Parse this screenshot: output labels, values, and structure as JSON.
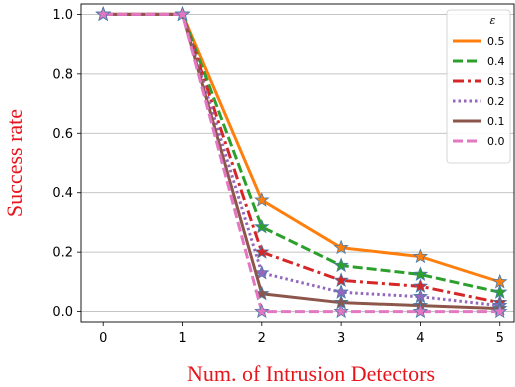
{
  "chart_data": {
    "type": "line",
    "xlabel": "Num. of Intrusion Detectors",
    "ylabel": "Success rate",
    "x": [
      0,
      1,
      2,
      3,
      4,
      5
    ],
    "xticks": [
      "0",
      "1",
      "2",
      "3",
      "4",
      "5"
    ],
    "yticks": [
      "0.0",
      "0.2",
      "0.4",
      "0.6",
      "0.8",
      "1.0"
    ],
    "xlim": [
      -0.28,
      5.18
    ],
    "ylim": [
      -0.035,
      1.035
    ],
    "grid": "horizontal",
    "legend_title": "ε",
    "legend_position": "top-right",
    "series": [
      {
        "name": "0.5",
        "values": [
          1.0,
          1.0,
          0.375,
          0.215,
          0.185,
          0.1
        ],
        "color": "#ff7f0e",
        "dash": "solid"
      },
      {
        "name": "0.4",
        "values": [
          1.0,
          1.0,
          0.285,
          0.155,
          0.125,
          0.065
        ],
        "color": "#2ca02c",
        "dash": "dashed"
      },
      {
        "name": "0.3",
        "values": [
          1.0,
          1.0,
          0.2,
          0.105,
          0.085,
          0.03
        ],
        "color": "#d62728",
        "dash": "dashdot"
      },
      {
        "name": "0.2",
        "values": [
          1.0,
          1.0,
          0.13,
          0.065,
          0.05,
          0.02
        ],
        "color": "#9467bd",
        "dash": "dotted"
      },
      {
        "name": "0.1",
        "values": [
          1.0,
          1.0,
          0.06,
          0.03,
          0.02,
          0.01
        ],
        "color": "#8c564b",
        "dash": "solid"
      },
      {
        "name": "0.0",
        "values": [
          1.0,
          1.0,
          0.0,
          0.0,
          0.0,
          0.0
        ],
        "color": "#e377c2",
        "dash": "dashed"
      }
    ]
  }
}
